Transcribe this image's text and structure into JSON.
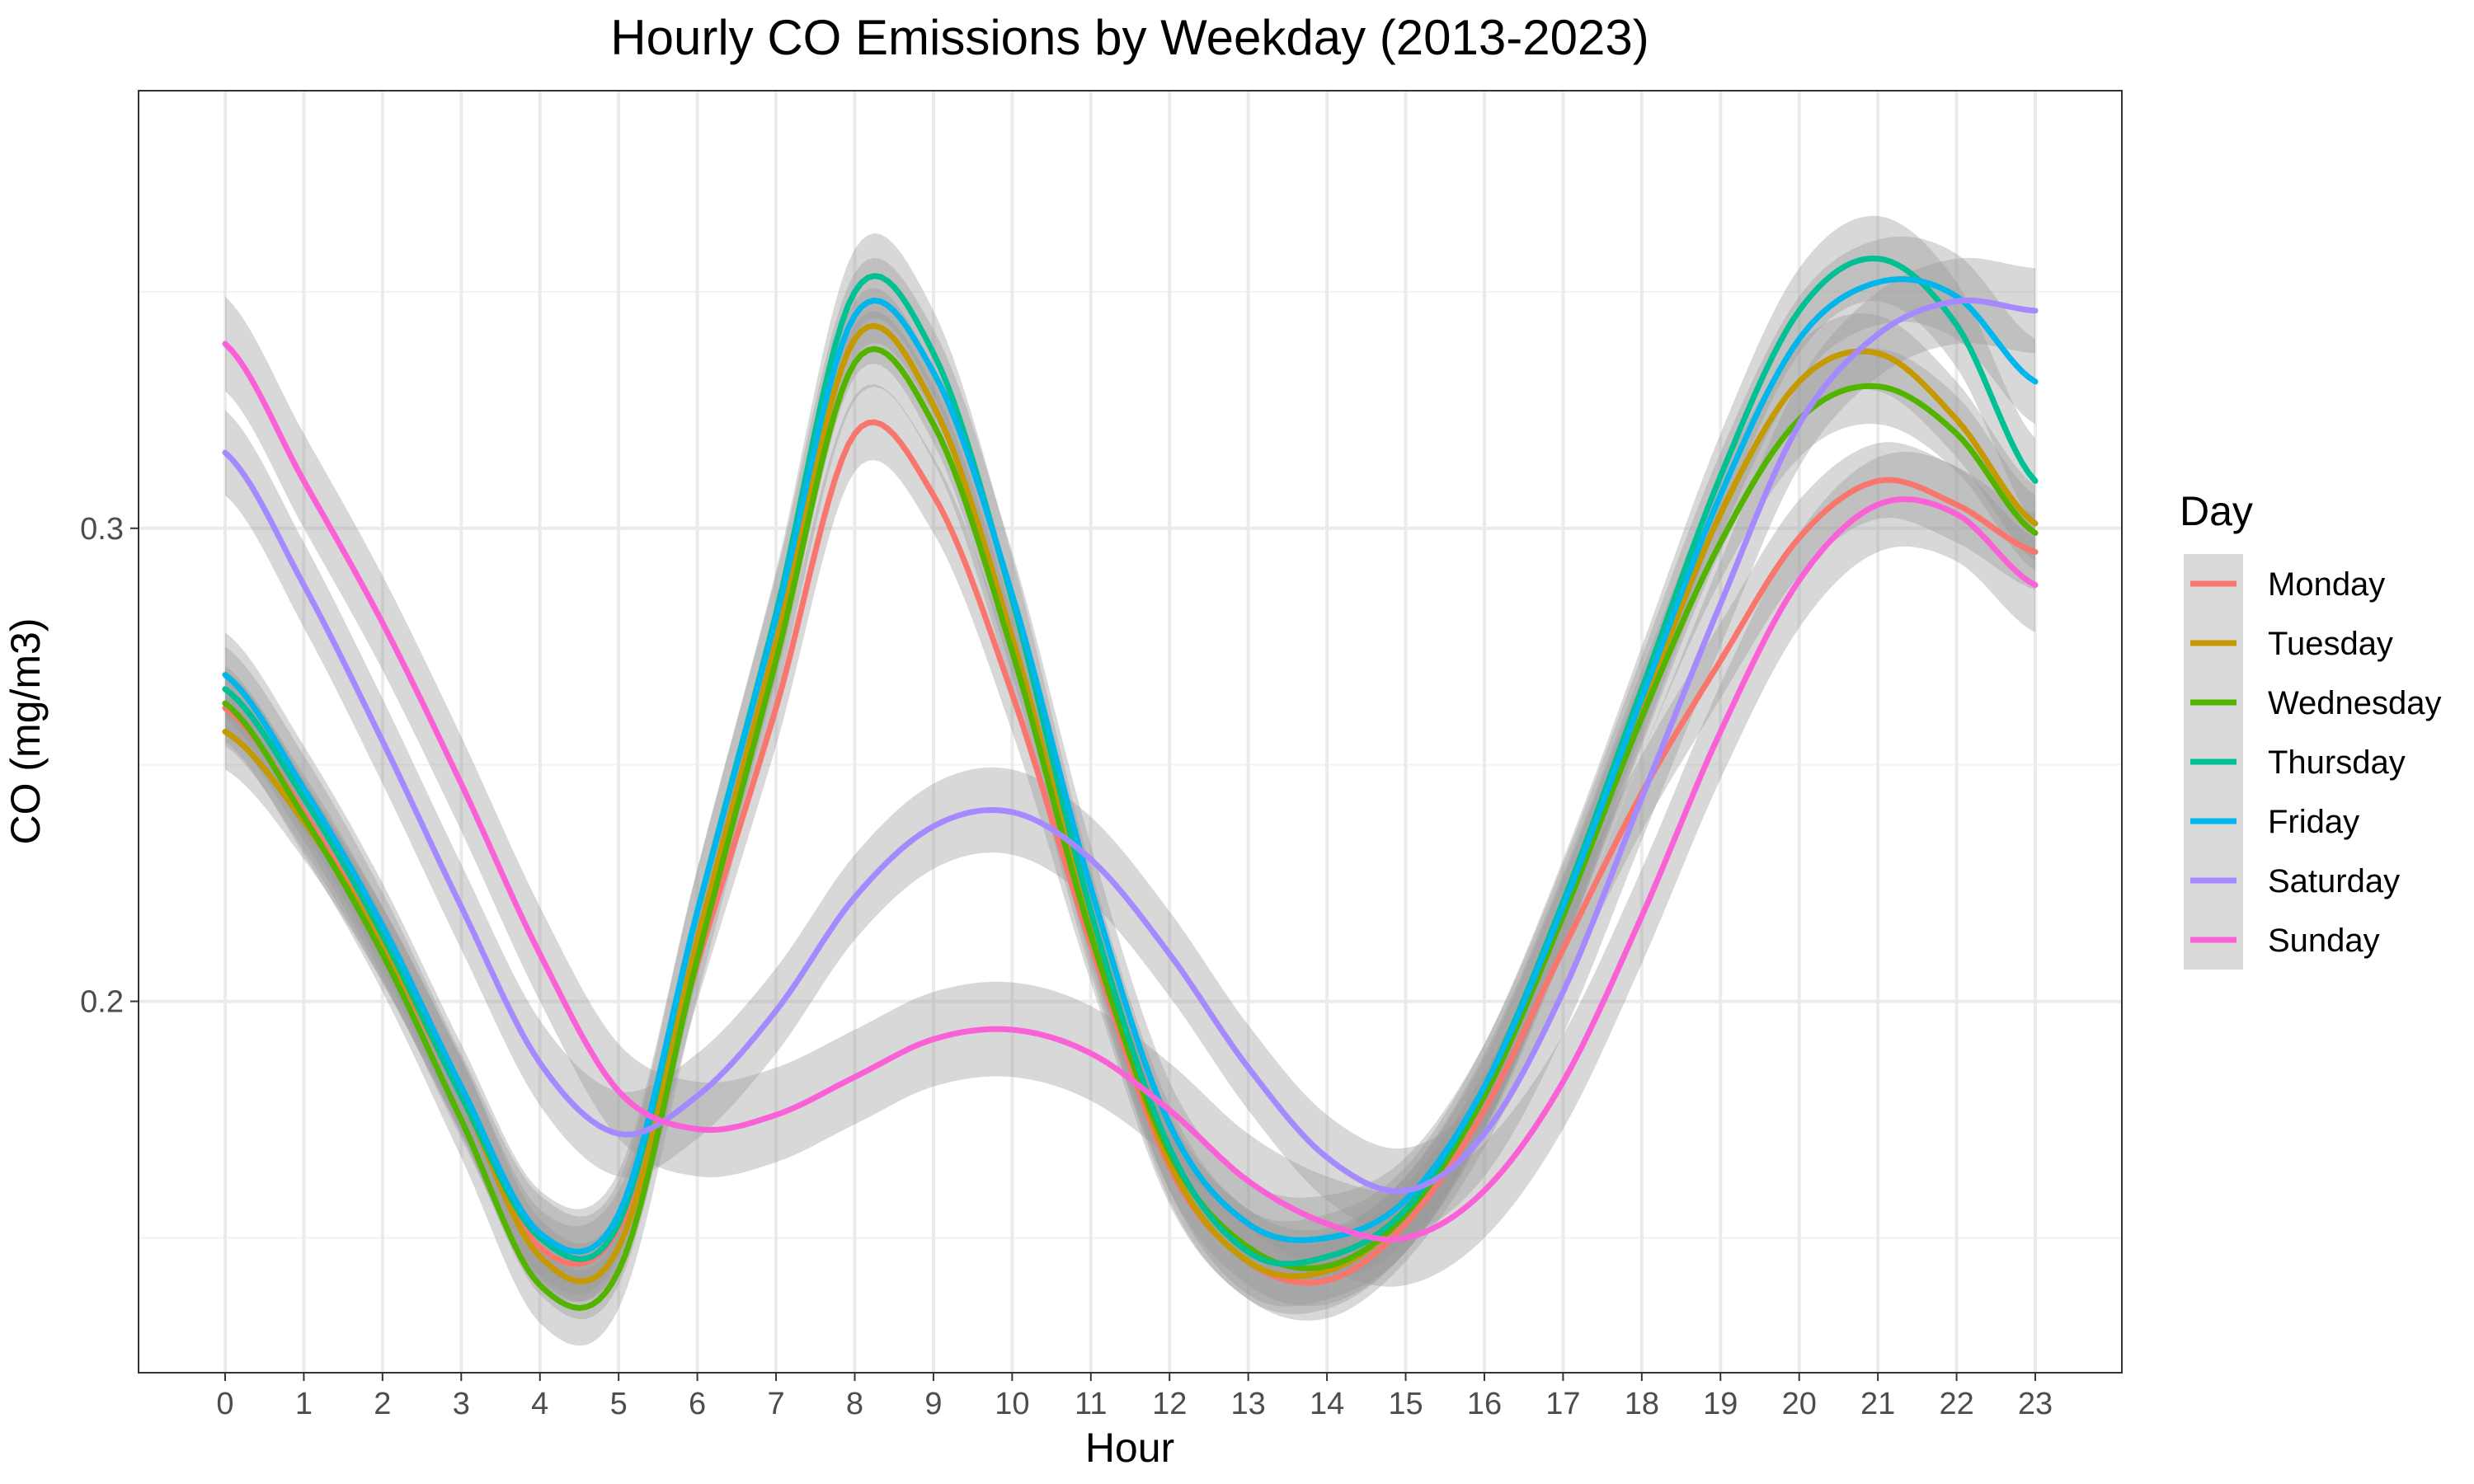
{
  "chart_data": {
    "type": "line",
    "title": "Hourly CO Emissions by Weekday (2013-2023)",
    "xlabel": "Hour",
    "ylabel": "CO (mg/m3)",
    "xlim": [
      -1.1,
      24.1
    ],
    "ylim": [
      0.1215,
      0.3925
    ],
    "x_ticks": [
      0,
      1,
      2,
      3,
      4,
      5,
      6,
      7,
      8,
      9,
      10,
      11,
      12,
      13,
      14,
      15,
      16,
      17,
      18,
      19,
      20,
      21,
      22,
      23
    ],
    "y_ticks": [
      0.2,
      0.3
    ],
    "y_tick_labels": [
      "0.2",
      "0.3"
    ],
    "grid": true,
    "legend": {
      "title": "Day",
      "position": "right"
    },
    "band_color": "#999999",
    "x": [
      0,
      1,
      2,
      3,
      4,
      5,
      6,
      7,
      8,
      9,
      10,
      11,
      12,
      13,
      14,
      15,
      16,
      17,
      18,
      19,
      20,
      21,
      22,
      23
    ],
    "series": [
      {
        "name": "Monday",
        "color": "#F8766D",
        "values": [
          0.262,
          0.24,
          0.212,
          0.18,
          0.148,
          0.152,
          0.208,
          0.262,
          0.32,
          0.307,
          0.265,
          0.212,
          0.165,
          0.145,
          0.141,
          0.153,
          0.177,
          0.211,
          0.244,
          0.272,
          0.298,
          0.31,
          0.305,
          0.295
        ],
        "band": 0.008
      },
      {
        "name": "Tuesday",
        "color": "#C49A00",
        "values": [
          0.257,
          0.238,
          0.212,
          0.18,
          0.146,
          0.148,
          0.213,
          0.276,
          0.34,
          0.326,
          0.277,
          0.216,
          0.166,
          0.145,
          0.143,
          0.155,
          0.181,
          0.219,
          0.262,
          0.303,
          0.331,
          0.337,
          0.323,
          0.301
        ],
        "band": 0.008
      },
      {
        "name": "Wednesday",
        "color": "#53B400",
        "values": [
          0.263,
          0.239,
          0.21,
          0.175,
          0.14,
          0.143,
          0.209,
          0.272,
          0.335,
          0.322,
          0.274,
          0.214,
          0.168,
          0.148,
          0.144,
          0.155,
          0.18,
          0.218,
          0.26,
          0.297,
          0.323,
          0.33,
          0.32,
          0.299
        ],
        "band": 0.008
      },
      {
        "name": "Thursday",
        "color": "#00C094",
        "values": [
          0.266,
          0.243,
          0.214,
          0.18,
          0.15,
          0.153,
          0.219,
          0.282,
          0.35,
          0.337,
          0.285,
          0.219,
          0.169,
          0.147,
          0.146,
          0.156,
          0.182,
          0.221,
          0.266,
          0.311,
          0.346,
          0.357,
          0.343,
          0.31
        ],
        "band": 0.009
      },
      {
        "name": "Friday",
        "color": "#00B6EB",
        "values": [
          0.269,
          0.245,
          0.216,
          0.182,
          0.151,
          0.155,
          0.219,
          0.281,
          0.345,
          0.333,
          0.286,
          0.224,
          0.174,
          0.153,
          0.15,
          0.158,
          0.182,
          0.22,
          0.264,
          0.307,
          0.34,
          0.352,
          0.349,
          0.331
        ],
        "band": 0.009
      },
      {
        "name": "Saturday",
        "color": "#A58AFF",
        "values": [
          0.316,
          0.288,
          0.255,
          0.22,
          0.187,
          0.172,
          0.18,
          0.198,
          0.222,
          0.237,
          0.24,
          0.23,
          0.21,
          0.186,
          0.167,
          0.16,
          0.172,
          0.202,
          0.243,
          0.284,
          0.322,
          0.341,
          0.348,
          0.346
        ],
        "band": 0.009
      },
      {
        "name": "Sunday",
        "color": "#FB61D7",
        "values": [
          0.339,
          0.31,
          0.28,
          0.246,
          0.21,
          0.181,
          0.173,
          0.176,
          0.184,
          0.192,
          0.194,
          0.189,
          0.177,
          0.162,
          0.153,
          0.15,
          0.16,
          0.183,
          0.218,
          0.257,
          0.289,
          0.305,
          0.303,
          0.288
        ],
        "band": 0.01
      }
    ]
  }
}
